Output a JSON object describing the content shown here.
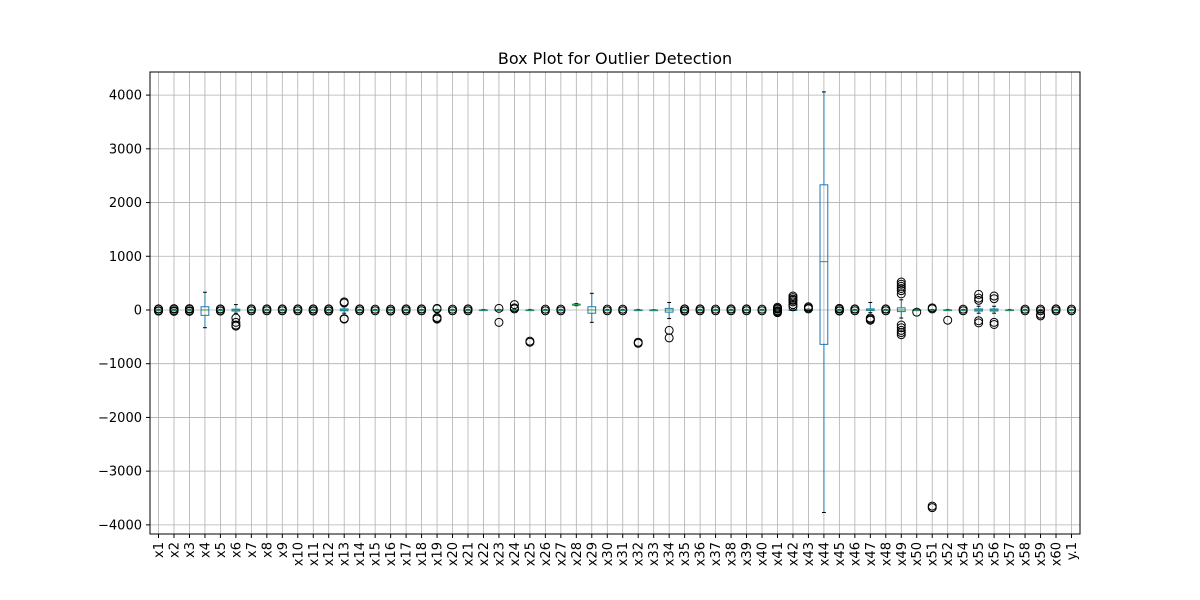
{
  "chart_data": {
    "type": "box",
    "title": "Box Plot for Outlier Detection",
    "xlabel": "",
    "ylabel": "",
    "ylim": [
      -4170,
      4430
    ],
    "yticks": [
      -4000,
      -3000,
      -2000,
      -1000,
      0,
      1000,
      2000,
      3000,
      4000
    ],
    "ytick_labels": [
      "−4000",
      "−3000",
      "−2000",
      "−1000",
      "0",
      "1000",
      "2000",
      "3000",
      "4000"
    ],
    "grid": true,
    "colors": {
      "box": "#1f77b4",
      "median": "#2ca02c",
      "grid": "#b0b0b0",
      "flier": "#000000"
    },
    "categories": [
      "x1",
      "x2",
      "x3",
      "x4",
      "x5",
      "x6",
      "x7",
      "x8",
      "x9",
      "x10",
      "x11",
      "x12",
      "x13",
      "x14",
      "x15",
      "x16",
      "x17",
      "x18",
      "x19",
      "x20",
      "x21",
      "x22",
      "x23",
      "x24",
      "x25",
      "x26",
      "x27",
      "x28",
      "x29",
      "x30",
      "x31",
      "x32",
      "x33",
      "x34",
      "x35",
      "x36",
      "x37",
      "x38",
      "x39",
      "x40",
      "x41",
      "x42",
      "x43",
      "x44",
      "x45",
      "x46",
      "x47",
      "x48",
      "x49",
      "x50",
      "x51",
      "x52",
      "x54",
      "x55",
      "x56",
      "x57",
      "x58",
      "x59",
      "x60",
      "y.1"
    ],
    "boxes": [
      {
        "q1": -5,
        "median": 0,
        "q3": 5,
        "whislo": -12,
        "whishi": 12,
        "fliers": [
          15,
          -15,
          18,
          -18,
          20,
          -20
        ]
      },
      {
        "q1": -5,
        "median": 0,
        "q3": 5,
        "whislo": -12,
        "whishi": 12,
        "fliers": [
          15,
          -15,
          20,
          -20,
          25,
          -25
        ]
      },
      {
        "q1": -5,
        "median": 0,
        "q3": 5,
        "whislo": -12,
        "whishi": 12,
        "fliers": [
          15,
          -15,
          20,
          -20,
          25,
          -25
        ]
      },
      {
        "q1": -100,
        "median": 0,
        "q3": 60,
        "whislo": -330,
        "whishi": 330,
        "fliers": []
      },
      {
        "q1": -3,
        "median": 0,
        "q3": 3,
        "whislo": -10,
        "whishi": 10,
        "fliers": [
          15,
          -15,
          20,
          -20
        ]
      },
      {
        "q1": -20,
        "median": 0,
        "q3": 15,
        "whislo": -60,
        "whishi": 100,
        "fliers": [
          -150,
          -230,
          -280,
          -300
        ]
      },
      {
        "q1": -3,
        "median": 0,
        "q3": 3,
        "whislo": -10,
        "whishi": 10,
        "fliers": [
          15,
          -15,
          20
        ]
      },
      {
        "q1": -3,
        "median": 0,
        "q3": 3,
        "whislo": -10,
        "whishi": 10,
        "fliers": [
          15,
          -15,
          20
        ]
      },
      {
        "q1": -3,
        "median": 0,
        "q3": 3,
        "whislo": -10,
        "whishi": 10,
        "fliers": [
          15,
          -15,
          20
        ]
      },
      {
        "q1": -3,
        "median": 0,
        "q3": 3,
        "whislo": -10,
        "whishi": 10,
        "fliers": [
          15,
          -15,
          20
        ]
      },
      {
        "q1": -3,
        "median": 0,
        "q3": 3,
        "whislo": -10,
        "whishi": 10,
        "fliers": [
          15,
          -15,
          20,
          -20
        ]
      },
      {
        "q1": -3,
        "median": 0,
        "q3": 3,
        "whislo": -10,
        "whishi": 10,
        "fliers": [
          15,
          -15,
          20,
          -20
        ]
      },
      {
        "q1": -15,
        "median": 0,
        "q3": 20,
        "whislo": -60,
        "whishi": 60,
        "fliers": [
          130,
          150,
          -160,
          -170
        ]
      },
      {
        "q1": -3,
        "median": 0,
        "q3": 3,
        "whislo": -10,
        "whishi": 10,
        "fliers": [
          15,
          -15,
          20
        ]
      },
      {
        "q1": -3,
        "median": 0,
        "q3": 3,
        "whislo": -10,
        "whishi": 10,
        "fliers": [
          15,
          -15
        ]
      },
      {
        "q1": -3,
        "median": 0,
        "q3": 3,
        "whislo": -10,
        "whishi": 10,
        "fliers": [
          15,
          -15,
          -20
        ]
      },
      {
        "q1": -3,
        "median": 0,
        "q3": 3,
        "whislo": -10,
        "whishi": 10,
        "fliers": [
          15,
          -15,
          20
        ]
      },
      {
        "q1": -3,
        "median": 0,
        "q3": 3,
        "whislo": -10,
        "whishi": 10,
        "fliers": [
          15,
          -15,
          20
        ]
      },
      {
        "q1": -3,
        "median": 0,
        "q3": 3,
        "whislo": -10,
        "whishi": 10,
        "fliers": [
          20,
          30,
          -140,
          -160,
          -170
        ]
      },
      {
        "q1": -3,
        "median": 0,
        "q3": 3,
        "whislo": -10,
        "whishi": 10,
        "fliers": [
          15,
          -15
        ]
      },
      {
        "q1": -3,
        "median": 0,
        "q3": 3,
        "whislo": -10,
        "whishi": 10,
        "fliers": [
          15,
          -15,
          20
        ]
      },
      {
        "q1": -3,
        "median": 0,
        "q3": 3,
        "whislo": -10,
        "whishi": 10,
        "fliers": []
      },
      {
        "q1": -3,
        "median": 0,
        "q3": 3,
        "whislo": -10,
        "whishi": 10,
        "fliers": [
          30,
          -230
        ]
      },
      {
        "q1": -3,
        "median": 0,
        "q3": 3,
        "whislo": -10,
        "whishi": 10,
        "fliers": [
          20,
          40,
          100
        ]
      },
      {
        "q1": -3,
        "median": 0,
        "q3": 3,
        "whislo": -10,
        "whishi": 10,
        "fliers": [
          -580,
          -600
        ]
      },
      {
        "q1": -3,
        "median": 0,
        "q3": 3,
        "whislo": -10,
        "whishi": 10,
        "fliers": [
          15,
          -15
        ]
      },
      {
        "q1": -3,
        "median": 0,
        "q3": 3,
        "whislo": -10,
        "whishi": 10,
        "fliers": [
          15,
          -15
        ]
      },
      {
        "q1": 90,
        "median": 100,
        "q3": 108,
        "whislo": 80,
        "whishi": 120,
        "fliers": []
      },
      {
        "q1": -60,
        "median": 0,
        "q3": 60,
        "whislo": -230,
        "whishi": 310,
        "fliers": []
      },
      {
        "q1": -3,
        "median": 0,
        "q3": 3,
        "whislo": -10,
        "whishi": 10,
        "fliers": [
          15,
          -15
        ]
      },
      {
        "q1": -3,
        "median": 0,
        "q3": 3,
        "whislo": -10,
        "whishi": 10,
        "fliers": [
          15,
          -15
        ]
      },
      {
        "q1": -3,
        "median": 0,
        "q3": 3,
        "whislo": -10,
        "whishi": 10,
        "fliers": [
          -600,
          -620
        ]
      },
      {
        "q1": -2,
        "median": 0,
        "q3": 2,
        "whislo": -6,
        "whishi": 6,
        "fliers": []
      },
      {
        "q1": -40,
        "median": 0,
        "q3": 30,
        "whislo": -160,
        "whishi": 140,
        "fliers": [
          -380,
          -520
        ]
      },
      {
        "q1": -3,
        "median": 0,
        "q3": 3,
        "whislo": -10,
        "whishi": 10,
        "fliers": [
          15,
          -15,
          20,
          -20
        ]
      },
      {
        "q1": -3,
        "median": 0,
        "q3": 3,
        "whislo": -10,
        "whishi": 10,
        "fliers": [
          15,
          -15,
          20
        ]
      },
      {
        "q1": -3,
        "median": 0,
        "q3": 3,
        "whislo": -10,
        "whishi": 10,
        "fliers": [
          15,
          -15
        ]
      },
      {
        "q1": -3,
        "median": 0,
        "q3": 3,
        "whislo": -10,
        "whishi": 10,
        "fliers": [
          15,
          -15,
          20
        ]
      },
      {
        "q1": -3,
        "median": 0,
        "q3": 3,
        "whislo": -10,
        "whishi": 10,
        "fliers": [
          15,
          -15,
          20
        ]
      },
      {
        "q1": -3,
        "median": 0,
        "q3": 3,
        "whislo": -10,
        "whishi": 10,
        "fliers": [
          15,
          -15
        ]
      },
      {
        "q1": -3,
        "median": 0,
        "q3": 3,
        "whislo": -10,
        "whishi": 10,
        "fliers": [
          15,
          -15,
          30,
          -30,
          50,
          -50
        ]
      },
      {
        "q1": -3,
        "median": 0,
        "q3": 5,
        "whislo": -10,
        "whishi": 20,
        "fliers": [
          60,
          100,
          150,
          180,
          200,
          230,
          260
        ]
      },
      {
        "q1": -3,
        "median": 0,
        "q3": 5,
        "whislo": -10,
        "whishi": 15,
        "fliers": [
          20,
          40,
          60
        ]
      },
      {
        "q1": -640,
        "median": 900,
        "q3": 2330,
        "whislo": -3770,
        "whishi": 4060,
        "fliers": []
      },
      {
        "q1": -3,
        "median": 0,
        "q3": 3,
        "whislo": -10,
        "whishi": 10,
        "fliers": [
          15,
          -15,
          20,
          -20,
          30
        ]
      },
      {
        "q1": -3,
        "median": 0,
        "q3": 3,
        "whislo": -10,
        "whishi": 10,
        "fliers": [
          15,
          -15,
          20
        ]
      },
      {
        "q1": -10,
        "median": 0,
        "q3": 20,
        "whislo": -50,
        "whishi": 140,
        "fliers": [
          -150,
          -170,
          -190
        ]
      },
      {
        "q1": -3,
        "median": 0,
        "q3": 3,
        "whislo": -10,
        "whishi": 10,
        "fliers": [
          15,
          -15,
          20
        ]
      },
      {
        "q1": -30,
        "median": 0,
        "q3": 40,
        "whislo": -150,
        "whishi": 190,
        "fliers": [
          300,
          360,
          400,
          440,
          480,
          520,
          -280,
          -330,
          -380,
          -420,
          -460
        ]
      },
      {
        "q1": -3,
        "median": 0,
        "q3": 3,
        "whislo": -10,
        "whishi": 10,
        "fliers": [
          -40
        ]
      },
      {
        "q1": -3,
        "median": 0,
        "q3": 3,
        "whislo": -10,
        "whishi": 10,
        "fliers": [
          20,
          40,
          -3650,
          -3680
        ]
      },
      {
        "q1": -3,
        "median": 0,
        "q3": 3,
        "whislo": -10,
        "whishi": 10,
        "fliers": [
          -190
        ]
      },
      {
        "q1": -3,
        "median": 0,
        "q3": 3,
        "whislo": -10,
        "whishi": 10,
        "fliers": [
          15,
          -15
        ]
      },
      {
        "q1": -20,
        "median": 0,
        "q3": 20,
        "whislo": -60,
        "whishi": 70,
        "fliers": [
          180,
          220,
          290,
          -200,
          -240
        ]
      },
      {
        "q1": -20,
        "median": 0,
        "q3": 20,
        "whislo": -60,
        "whishi": 70,
        "fliers": [
          210,
          260,
          -230,
          -270
        ]
      },
      {
        "q1": -3,
        "median": 0,
        "q3": 3,
        "whislo": -10,
        "whishi": 10,
        "fliers": []
      },
      {
        "q1": -3,
        "median": 0,
        "q3": 3,
        "whislo": -10,
        "whishi": 10,
        "fliers": [
          15,
          -15
        ]
      },
      {
        "q1": -3,
        "median": 0,
        "q3": 3,
        "whislo": -10,
        "whishi": 10,
        "fliers": [
          15,
          -15,
          -80,
          -110
        ]
      },
      {
        "q1": -3,
        "median": 0,
        "q3": 3,
        "whislo": -10,
        "whishi": 10,
        "fliers": [
          15,
          -15,
          20
        ]
      },
      {
        "q1": -3,
        "median": 0,
        "q3": 3,
        "whislo": -10,
        "whishi": 10,
        "fliers": [
          15,
          -15
        ]
      }
    ]
  }
}
